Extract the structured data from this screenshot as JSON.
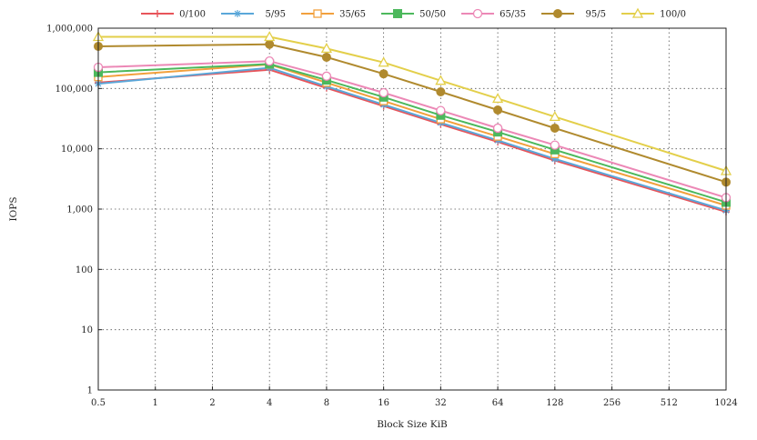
{
  "chart_data": {
    "type": "line",
    "title": "",
    "xlabel": "Block Size KiB",
    "ylabel": "IOPS",
    "x_scale": "log2",
    "y_scale": "log10",
    "ylim": [
      1,
      1000000
    ],
    "grid": true,
    "legend_position": "top",
    "categories": [
      "0.5",
      "1",
      "2",
      "4",
      "8",
      "16",
      "32",
      "64",
      "128",
      "256",
      "512",
      "1024"
    ],
    "y_tick_labels": [
      "1",
      "10",
      "100",
      "1,000",
      "10,000",
      "100,000",
      "1,000,000"
    ],
    "y_tick_values": [
      1,
      10,
      100,
      1000,
      10000,
      100000,
      1000000
    ],
    "series": [
      {
        "name": "0/100",
        "color": "#e8545a",
        "marker": "plus",
        "x": [
          "0.5",
          "4",
          "8",
          "16",
          "32",
          "64",
          "128",
          "1024"
        ],
        "values": [
          125000,
          205000,
          102000,
          51000,
          25500,
          13000,
          6400,
          900
        ]
      },
      {
        "name": "5/95",
        "color": "#5aa7d9",
        "marker": "asterisk",
        "x": [
          "0.5",
          "4",
          "8",
          "16",
          "32",
          "64",
          "128",
          "1024"
        ],
        "values": [
          120000,
          220000,
          108000,
          54000,
          27000,
          13800,
          6800,
          950
        ]
      },
      {
        "name": "35/65",
        "color": "#f2a03d",
        "marker": "open-square",
        "x": [
          "0.5",
          "4",
          "8",
          "16",
          "32",
          "64",
          "128",
          "1024"
        ],
        "values": [
          155000,
          250000,
          125000,
          62000,
          31000,
          16000,
          8200,
          1150
        ]
      },
      {
        "name": "50/50",
        "color": "#4cb85c",
        "marker": "filled-square",
        "x": [
          "0.5",
          "4",
          "8",
          "16",
          "32",
          "64",
          "128",
          "1024"
        ],
        "values": [
          185000,
          255000,
          138000,
          72000,
          36000,
          19000,
          9600,
          1300
        ]
      },
      {
        "name": "65/35",
        "color": "#ec88b6",
        "marker": "open-circle",
        "x": [
          "0.5",
          "4",
          "8",
          "16",
          "32",
          "64",
          "128",
          "1024"
        ],
        "values": [
          225000,
          285000,
          160000,
          85000,
          43000,
          22000,
          11500,
          1550
        ]
      },
      {
        "name": "95/5",
        "color": "#b08a2e",
        "marker": "filled-circle",
        "x": [
          "0.5",
          "4",
          "8",
          "16",
          "32",
          "64",
          "128",
          "1024"
        ],
        "values": [
          500000,
          540000,
          330000,
          175000,
          88000,
          44000,
          22000,
          2800
        ]
      },
      {
        "name": "100/0",
        "color": "#e3cf4a",
        "marker": "open-triangle",
        "x": [
          "0.5",
          "4",
          "8",
          "16",
          "32",
          "64",
          "128",
          "1024"
        ],
        "values": [
          720000,
          720000,
          460000,
          270000,
          135000,
          68000,
          34000,
          4300
        ]
      }
    ]
  }
}
